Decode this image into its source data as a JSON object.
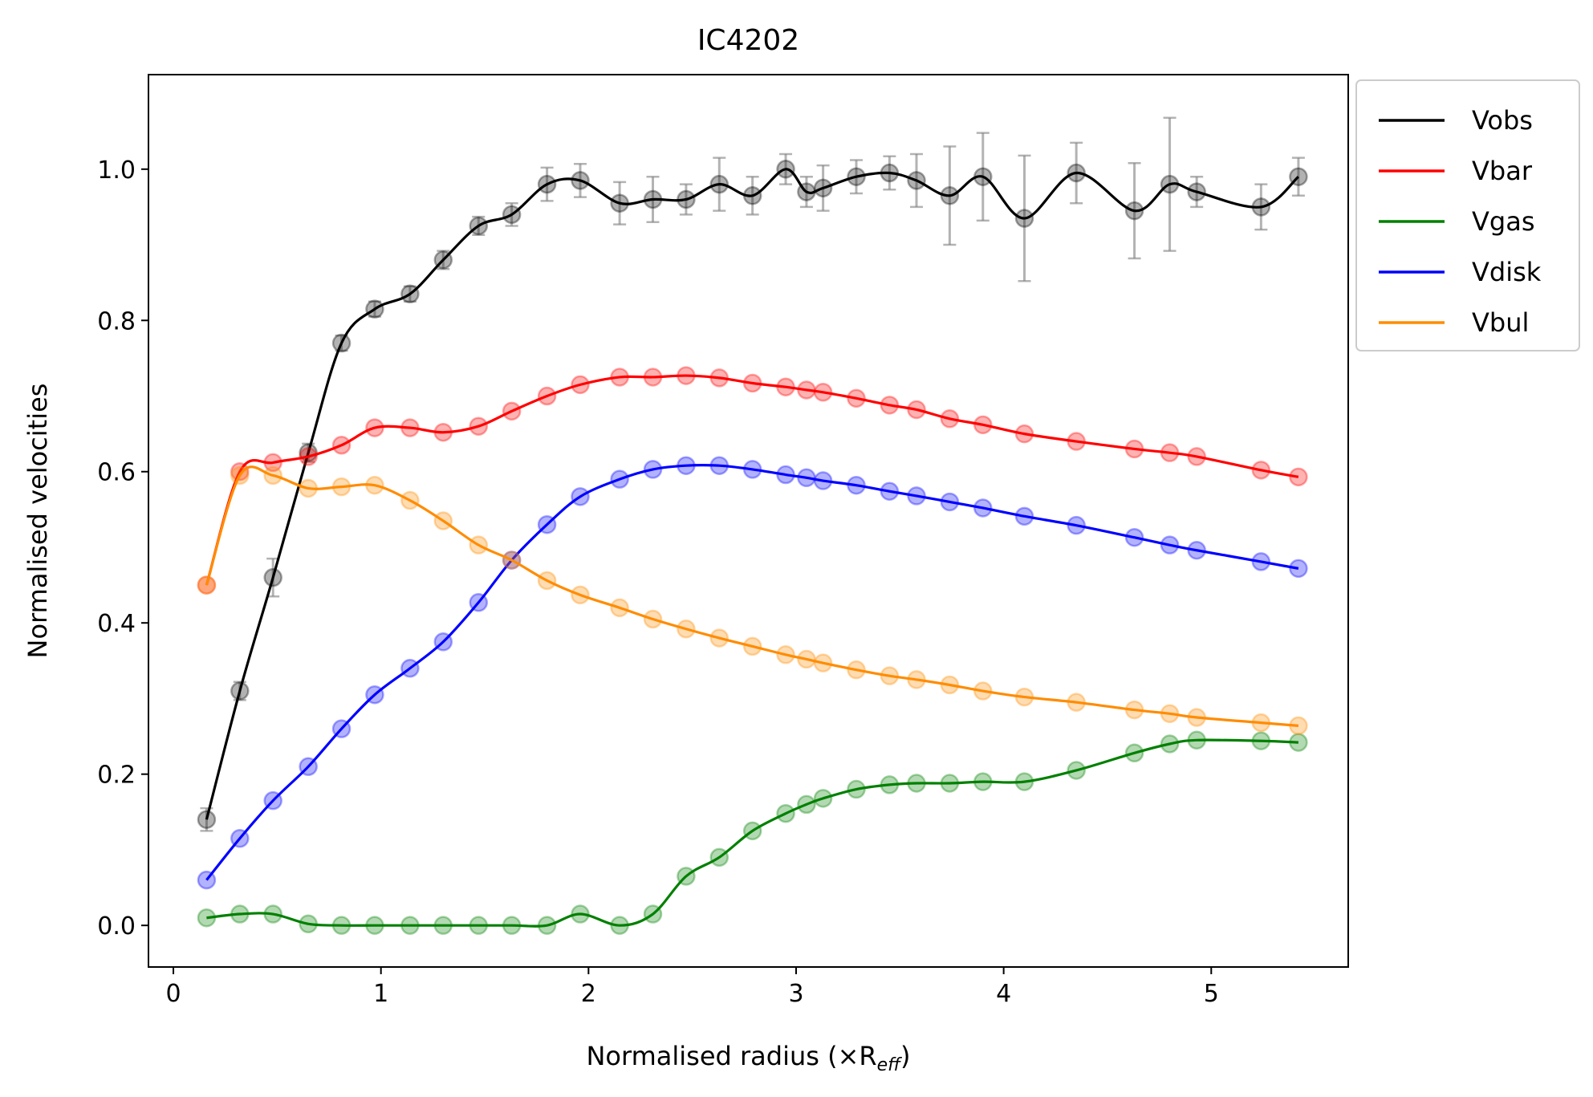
{
  "chart_data": {
    "type": "line",
    "title": "IC4202",
    "xlabel": "Normalised radius (×R",
    "xlabel_subscript": "eff",
    "xlabel_suffix": ")",
    "ylabel": "Normalised velocities",
    "xlim": [
      -0.12,
      5.66
    ],
    "ylim": [
      -0.055,
      1.125
    ],
    "x_ticks": [
      0,
      1,
      2,
      3,
      4,
      5
    ],
    "y_ticks": [
      0.0,
      0.2,
      0.4,
      0.6,
      0.8,
      1.0
    ],
    "x_tick_labels": [
      "0",
      "1",
      "2",
      "3",
      "4",
      "5"
    ],
    "y_tick_labels": [
      "0.0",
      "0.2",
      "0.4",
      "0.6",
      "0.8",
      "1.0"
    ],
    "grid": false,
    "legend_position": "outside-upper-right",
    "x": [
      0.16,
      0.32,
      0.48,
      0.65,
      0.81,
      0.97,
      1.14,
      1.3,
      1.47,
      1.63,
      1.8,
      1.96,
      2.15,
      2.31,
      2.47,
      2.63,
      2.79,
      2.95,
      3.05,
      3.13,
      3.29,
      3.45,
      3.58,
      3.74,
      3.9,
      4.1,
      4.35,
      4.63,
      4.8,
      4.93,
      5.24,
      5.42
    ],
    "series": [
      {
        "name": "Vobs",
        "color": "#000000",
        "values": [
          0.14,
          0.31,
          0.46,
          0.625,
          0.77,
          0.815,
          0.835,
          0.88,
          0.925,
          0.94,
          0.98,
          0.985,
          0.955,
          0.96,
          0.96,
          0.98,
          0.965,
          1.0,
          0.97,
          0.975,
          0.99,
          0.995,
          0.985,
          0.965,
          0.99,
          0.935,
          0.995,
          0.945,
          0.98,
          0.97,
          0.95,
          0.99
        ],
        "errors": [
          0.015,
          0.012,
          0.025,
          0.012,
          0.01,
          0.01,
          0.01,
          0.012,
          0.012,
          0.015,
          0.022,
          0.022,
          0.028,
          0.03,
          0.02,
          0.035,
          0.025,
          0.02,
          0.02,
          0.03,
          0.022,
          0.022,
          0.035,
          0.065,
          0.058,
          0.083,
          0.04,
          0.063,
          0.088,
          0.02,
          0.03,
          0.025
        ]
      },
      {
        "name": "Vbar",
        "color": "#ff0000",
        "values": [
          0.45,
          0.6,
          0.612,
          0.62,
          0.635,
          0.658,
          0.658,
          0.652,
          0.66,
          0.68,
          0.7,
          0.715,
          0.725,
          0.725,
          0.727,
          0.724,
          0.717,
          0.712,
          0.708,
          0.705,
          0.697,
          0.688,
          0.682,
          0.67,
          0.662,
          0.65,
          0.64,
          0.63,
          0.625,
          0.62,
          0.602,
          0.593
        ]
      },
      {
        "name": "Vgas",
        "color": "#008000",
        "values": [
          0.01,
          0.015,
          0.015,
          0.002,
          0.0,
          0.0,
          0.0,
          0.0,
          0.0,
          0.0,
          0.0,
          0.015,
          0.0,
          0.015,
          0.065,
          0.09,
          0.125,
          0.148,
          0.16,
          0.168,
          0.18,
          0.186,
          0.188,
          0.188,
          0.19,
          0.19,
          0.205,
          0.228,
          0.24,
          0.245,
          0.244,
          0.242
        ]
      },
      {
        "name": "Vdisk",
        "color": "#0000ff",
        "values": [
          0.06,
          0.115,
          0.165,
          0.21,
          0.26,
          0.305,
          0.34,
          0.375,
          0.427,
          0.483,
          0.53,
          0.567,
          0.59,
          0.603,
          0.608,
          0.608,
          0.603,
          0.596,
          0.592,
          0.588,
          0.582,
          0.574,
          0.568,
          0.56,
          0.552,
          0.541,
          0.529,
          0.513,
          0.503,
          0.496,
          0.481,
          0.472
        ]
      },
      {
        "name": "Vbul",
        "color": "#ff8c00",
        "values": [
          0.45,
          0.595,
          0.595,
          0.578,
          0.58,
          0.582,
          0.562,
          0.535,
          0.503,
          0.483,
          0.456,
          0.437,
          0.42,
          0.405,
          0.392,
          0.38,
          0.369,
          0.358,
          0.352,
          0.347,
          0.338,
          0.33,
          0.325,
          0.318,
          0.31,
          0.302,
          0.295,
          0.285,
          0.28,
          0.275,
          0.268,
          0.264
        ]
      }
    ]
  }
}
